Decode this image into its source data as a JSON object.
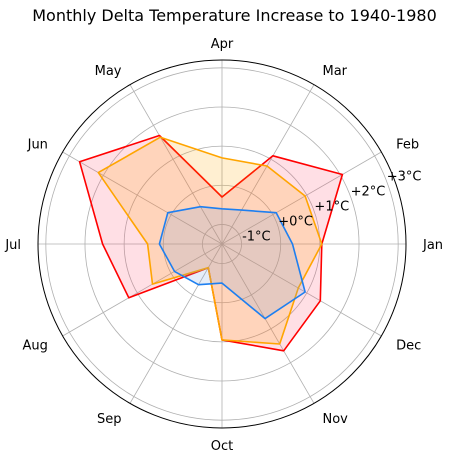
{
  "chart_data": {
    "type": "radar",
    "title": "Monthly Delta Temperature Increase to 1940-1980",
    "categories": [
      "Jan",
      "Feb",
      "Mar",
      "Apr",
      "May",
      "Jun",
      "Jul",
      "Aug",
      "Sep",
      "Oct",
      "Nov",
      "Dec"
    ],
    "radial_ticks": [
      "-1°C",
      "+0°C",
      "+1°C",
      "+2°C",
      "+3°C"
    ],
    "radial_tick_values": [
      -1,
      0,
      1,
      2,
      3
    ],
    "rlim": [
      -1.5,
      3.2
    ],
    "grid": true,
    "series": [
      {
        "color": "#ff0000",
        "fill": "#ff4d6d",
        "values": [
          1.05,
          2.05,
          1.1,
          -0.3,
          1.7,
          2.7,
          1.55,
          1.25,
          -0.8,
          0.95,
          1.65,
          1.4
        ]
      },
      {
        "color": "#ffa500",
        "fill": "#ffa500",
        "values": [
          1.05,
          0.95,
          0.8,
          0.7,
          1.65,
          2.15,
          0.4,
          0.55,
          -0.8,
          0.95,
          1.45,
          0.75
        ]
      },
      {
        "color": "#1e7ff0",
        "fill": "#6e9bd6",
        "values": [
          0.3,
          0.1,
          -0.5,
          -0.6,
          -0.4,
          0.1,
          0.1,
          -0.1,
          -0.3,
          -0.5,
          0.7,
          0.95
        ]
      }
    ]
  }
}
